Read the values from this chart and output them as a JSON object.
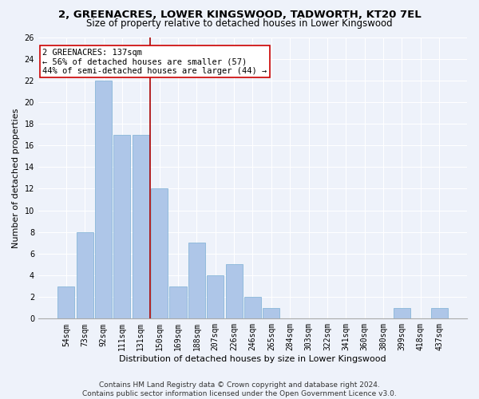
{
  "title": "2, GREENACRES, LOWER KINGSWOOD, TADWORTH, KT20 7EL",
  "subtitle": "Size of property relative to detached houses in Lower Kingswood",
  "xlabel": "Distribution of detached houses by size in Lower Kingswood",
  "ylabel": "Number of detached properties",
  "categories": [
    "54sqm",
    "73sqm",
    "92sqm",
    "111sqm",
    "131sqm",
    "150sqm",
    "169sqm",
    "188sqm",
    "207sqm",
    "226sqm",
    "246sqm",
    "265sqm",
    "284sqm",
    "303sqm",
    "322sqm",
    "341sqm",
    "360sqm",
    "380sqm",
    "399sqm",
    "418sqm",
    "437sqm"
  ],
  "values": [
    3,
    8,
    22,
    17,
    17,
    12,
    3,
    7,
    4,
    5,
    2,
    1,
    0,
    0,
    0,
    0,
    0,
    0,
    1,
    0,
    1
  ],
  "bar_color": "#aec6e8",
  "bar_edge_color": "#7bafd4",
  "vline_x": 4.5,
  "vline_color": "#aa0000",
  "annotation_text": "2 GREENACRES: 137sqm\n← 56% of detached houses are smaller (57)\n44% of semi-detached houses are larger (44) →",
  "annotation_box_color": "#ffffff",
  "annotation_box_edge_color": "#cc0000",
  "ylim": [
    0,
    26
  ],
  "yticks": [
    0,
    2,
    4,
    6,
    8,
    10,
    12,
    14,
    16,
    18,
    20,
    22,
    24,
    26
  ],
  "footer_line1": "Contains HM Land Registry data © Crown copyright and database right 2024.",
  "footer_line2": "Contains public sector information licensed under the Open Government Licence v3.0.",
  "background_color": "#eef2fa",
  "grid_color": "#ffffff",
  "title_fontsize": 9.5,
  "subtitle_fontsize": 8.5,
  "ylabel_fontsize": 8,
  "xlabel_fontsize": 8,
  "tick_fontsize": 7,
  "annotation_fontsize": 7.5,
  "footer_fontsize": 6.5
}
